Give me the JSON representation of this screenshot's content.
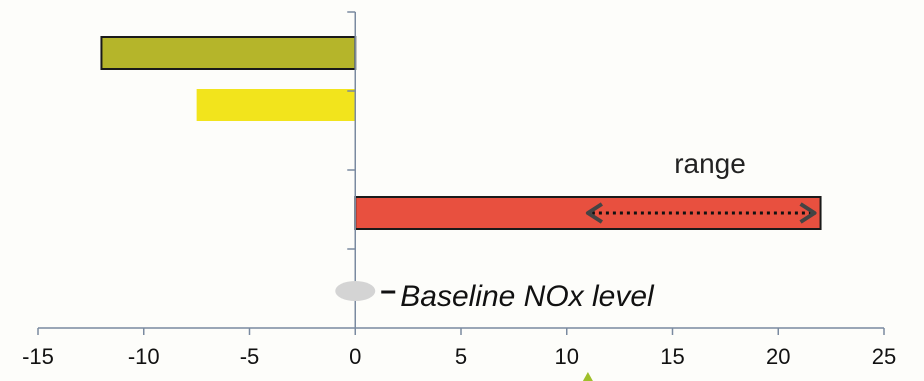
{
  "chart_data": {
    "type": "bar",
    "orientation": "horizontal",
    "xlim": [
      -15,
      25
    ],
    "xticks": [
      -15,
      -10,
      -5,
      0,
      5,
      10,
      15,
      20,
      25
    ],
    "bars": [
      {
        "value": -12,
        "color": "#b5b52a",
        "outlined": true
      },
      {
        "value": -7.5,
        "color": "#f2e41c",
        "outlined": false
      },
      {
        "value": 22,
        "color": "#e8503f",
        "outlined": true
      }
    ],
    "range_arrow": {
      "from": 11,
      "to": 22,
      "label": "range"
    },
    "baseline": {
      "x": 0,
      "label": "Baseline NOx level",
      "color": "#d4d4d4"
    },
    "marker": {
      "x": 11,
      "color": "#9fbf2a"
    },
    "grid": false,
    "title": "",
    "xlabel": "",
    "ylabel": ""
  }
}
